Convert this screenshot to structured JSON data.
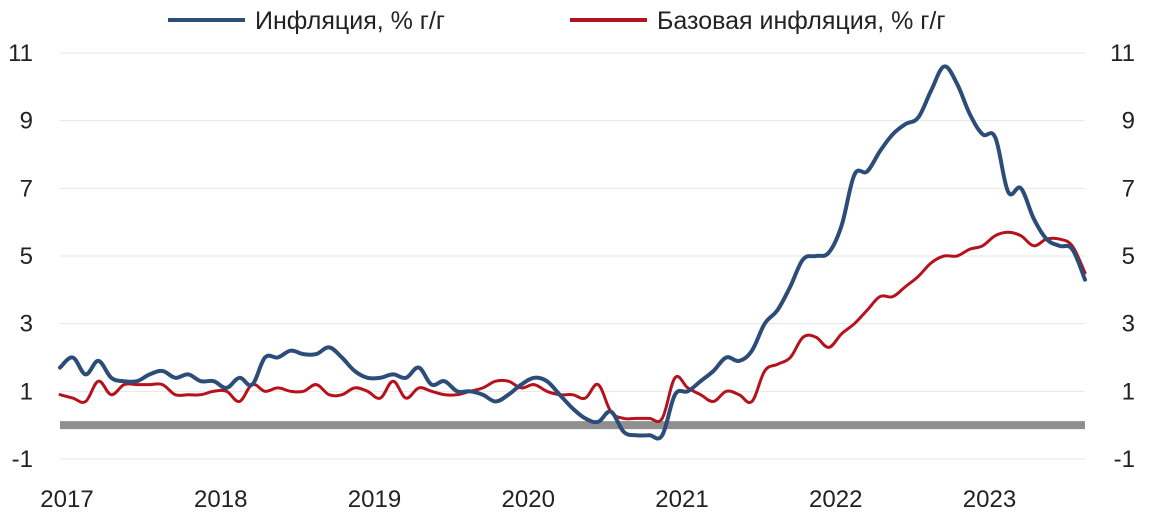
{
  "chart_data": {
    "type": "line",
    "title": "",
    "xlabel": "",
    "ylabel": "",
    "x_ticks": [
      "2017",
      "2018",
      "2019",
      "2020",
      "2021",
      "2022",
      "2023"
    ],
    "y_ticks": [
      11,
      9,
      7,
      5,
      3,
      1,
      -1
    ],
    "ylim": [
      -1,
      11
    ],
    "xlim": [
      "2017-01",
      "2023-09"
    ],
    "grid": "horizontal",
    "zero_line": true,
    "legend_position": "top",
    "colors": {
      "inflation": "#2b4d78",
      "core": "#b5121b",
      "zero_line": "#8f8f8f",
      "grid": "#e6e6e6"
    },
    "series": [
      {
        "name": "Инфляция, % г/г",
        "key": "inflation",
        "points": [
          [
            "2017-01",
            1.7
          ],
          [
            "2017-02",
            2.0
          ],
          [
            "2017-03",
            1.5
          ],
          [
            "2017-04",
            1.9
          ],
          [
            "2017-05",
            1.4
          ],
          [
            "2017-06",
            1.3
          ],
          [
            "2017-07",
            1.3
          ],
          [
            "2017-08",
            1.5
          ],
          [
            "2017-09",
            1.6
          ],
          [
            "2017-10",
            1.4
          ],
          [
            "2017-11",
            1.5
          ],
          [
            "2017-12",
            1.3
          ],
          [
            "2018-01",
            1.3
          ],
          [
            "2018-02",
            1.1
          ],
          [
            "2018-03",
            1.4
          ],
          [
            "2018-04",
            1.2
          ],
          [
            "2018-05",
            2.0
          ],
          [
            "2018-06",
            2.0
          ],
          [
            "2018-07",
            2.2
          ],
          [
            "2018-08",
            2.1
          ],
          [
            "2018-09",
            2.1
          ],
          [
            "2018-10",
            2.3
          ],
          [
            "2018-11",
            2.0
          ],
          [
            "2018-12",
            1.6
          ],
          [
            "2019-01",
            1.4
          ],
          [
            "2019-02",
            1.4
          ],
          [
            "2019-03",
            1.5
          ],
          [
            "2019-04",
            1.4
          ],
          [
            "2019-05",
            1.7
          ],
          [
            "2019-06",
            1.2
          ],
          [
            "2019-07",
            1.3
          ],
          [
            "2019-08",
            1.0
          ],
          [
            "2019-09",
            1.0
          ],
          [
            "2019-10",
            0.9
          ],
          [
            "2019-11",
            0.7
          ],
          [
            "2019-12",
            0.9
          ],
          [
            "2020-01",
            1.2
          ],
          [
            "2020-02",
            1.4
          ],
          [
            "2020-03",
            1.3
          ],
          [
            "2020-04",
            0.9
          ],
          [
            "2020-05",
            0.5
          ],
          [
            "2020-06",
            0.2
          ],
          [
            "2020-07",
            0.1
          ],
          [
            "2020-08",
            0.4
          ],
          [
            "2020-09",
            -0.2
          ],
          [
            "2020-10",
            -0.3
          ],
          [
            "2020-11",
            -0.3
          ],
          [
            "2020-12",
            -0.3
          ],
          [
            "2021-01",
            0.9
          ],
          [
            "2021-02",
            1.0
          ],
          [
            "2021-03",
            1.3
          ],
          [
            "2021-04",
            1.6
          ],
          [
            "2021-05",
            2.0
          ],
          [
            "2021-06",
            1.9
          ],
          [
            "2021-07",
            2.2
          ],
          [
            "2021-08",
            3.0
          ],
          [
            "2021-09",
            3.4
          ],
          [
            "2021-10",
            4.1
          ],
          [
            "2021-11",
            4.9
          ],
          [
            "2021-12",
            5.0
          ],
          [
            "2022-01",
            5.1
          ],
          [
            "2022-02",
            5.9
          ],
          [
            "2022-03",
            7.4
          ],
          [
            "2022-04",
            7.5
          ],
          [
            "2022-05",
            8.1
          ],
          [
            "2022-06",
            8.6
          ],
          [
            "2022-07",
            8.9
          ],
          [
            "2022-08",
            9.1
          ],
          [
            "2022-09",
            9.9
          ],
          [
            "2022-10",
            10.6
          ],
          [
            "2022-11",
            10.1
          ],
          [
            "2022-12",
            9.2
          ],
          [
            "2023-01",
            8.6
          ],
          [
            "2023-02",
            8.5
          ],
          [
            "2023-03",
            6.9
          ],
          [
            "2023-04",
            7.0
          ],
          [
            "2023-05",
            6.1
          ],
          [
            "2023-06",
            5.5
          ],
          [
            "2023-07",
            5.3
          ],
          [
            "2023-08",
            5.2
          ],
          [
            "2023-09",
            4.3
          ]
        ]
      },
      {
        "name": "Базовая инфляция, % г/г",
        "key": "core",
        "points": [
          [
            "2017-01",
            0.9
          ],
          [
            "2017-02",
            0.8
          ],
          [
            "2017-03",
            0.7
          ],
          [
            "2017-04",
            1.3
          ],
          [
            "2017-05",
            0.9
          ],
          [
            "2017-06",
            1.2
          ],
          [
            "2017-07",
            1.2
          ],
          [
            "2017-08",
            1.2
          ],
          [
            "2017-09",
            1.2
          ],
          [
            "2017-10",
            0.9
          ],
          [
            "2017-11",
            0.9
          ],
          [
            "2017-12",
            0.9
          ],
          [
            "2018-01",
            1.0
          ],
          [
            "2018-02",
            1.0
          ],
          [
            "2018-03",
            0.7
          ],
          [
            "2018-04",
            1.2
          ],
          [
            "2018-05",
            1.0
          ],
          [
            "2018-06",
            1.1
          ],
          [
            "2018-07",
            1.0
          ],
          [
            "2018-08",
            1.0
          ],
          [
            "2018-09",
            1.2
          ],
          [
            "2018-10",
            0.9
          ],
          [
            "2018-11",
            0.9
          ],
          [
            "2018-12",
            1.1
          ],
          [
            "2019-01",
            1.0
          ],
          [
            "2019-02",
            0.8
          ],
          [
            "2019-03",
            1.3
          ],
          [
            "2019-04",
            0.8
          ],
          [
            "2019-05",
            1.1
          ],
          [
            "2019-06",
            1.0
          ],
          [
            "2019-07",
            0.9
          ],
          [
            "2019-08",
            0.9
          ],
          [
            "2019-09",
            1.0
          ],
          [
            "2019-10",
            1.1
          ],
          [
            "2019-11",
            1.3
          ],
          [
            "2019-12",
            1.3
          ],
          [
            "2020-01",
            1.1
          ],
          [
            "2020-02",
            1.2
          ],
          [
            "2020-03",
            1.0
          ],
          [
            "2020-04",
            0.9
          ],
          [
            "2020-05",
            0.9
          ],
          [
            "2020-06",
            0.8
          ],
          [
            "2020-07",
            1.2
          ],
          [
            "2020-08",
            0.4
          ],
          [
            "2020-09",
            0.2
          ],
          [
            "2020-10",
            0.2
          ],
          [
            "2020-11",
            0.2
          ],
          [
            "2020-12",
            0.2
          ],
          [
            "2021-01",
            1.4
          ],
          [
            "2021-02",
            1.1
          ],
          [
            "2021-03",
            0.9
          ],
          [
            "2021-04",
            0.7
          ],
          [
            "2021-05",
            1.0
          ],
          [
            "2021-06",
            0.9
          ],
          [
            "2021-07",
            0.7
          ],
          [
            "2021-08",
            1.6
          ],
          [
            "2021-09",
            1.8
          ],
          [
            "2021-10",
            2.0
          ],
          [
            "2021-11",
            2.6
          ],
          [
            "2021-12",
            2.6
          ],
          [
            "2022-01",
            2.3
          ],
          [
            "2022-02",
            2.7
          ],
          [
            "2022-03",
            3.0
          ],
          [
            "2022-04",
            3.4
          ],
          [
            "2022-05",
            3.8
          ],
          [
            "2022-06",
            3.8
          ],
          [
            "2022-07",
            4.1
          ],
          [
            "2022-08",
            4.4
          ],
          [
            "2022-09",
            4.8
          ],
          [
            "2022-10",
            5.0
          ],
          [
            "2022-11",
            5.0
          ],
          [
            "2022-12",
            5.2
          ],
          [
            "2023-01",
            5.3
          ],
          [
            "2023-02",
            5.6
          ],
          [
            "2023-03",
            5.7
          ],
          [
            "2023-04",
            5.6
          ],
          [
            "2023-05",
            5.3
          ],
          [
            "2023-06",
            5.5
          ],
          [
            "2023-07",
            5.5
          ],
          [
            "2023-08",
            5.3
          ],
          [
            "2023-09",
            4.5
          ]
        ]
      }
    ]
  }
}
